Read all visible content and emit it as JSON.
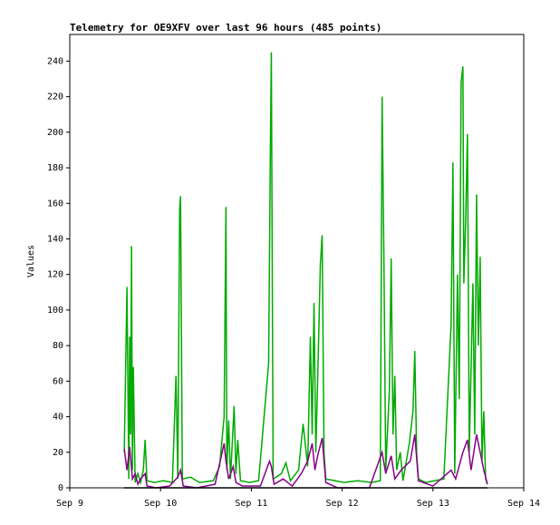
{
  "chart_data": {
    "type": "line",
    "title": "Telemetry for OE9XFV over last 96 hours (485 points)",
    "y_label": "Values",
    "xlim": [
      9,
      14
    ],
    "xticks": [
      {
        "value": 9,
        "label": "Sep 9"
      },
      {
        "value": 10,
        "label": "Sep 10"
      },
      {
        "value": 11,
        "label": "Sep 11"
      },
      {
        "value": 12,
        "label": "Sep 12"
      },
      {
        "value": 13,
        "label": "Sep 13"
      },
      {
        "value": 14,
        "label": "Sep 14"
      }
    ],
    "ylim": [
      0,
      255
    ],
    "yticks": [
      0,
      20,
      40,
      60,
      80,
      100,
      120,
      140,
      160,
      180,
      200,
      220,
      240
    ],
    "series": [
      {
        "color": "#00aa00",
        "x": [
          9.6,
          9.63,
          9.65,
          9.66,
          9.67,
          9.68,
          9.69,
          9.7,
          9.72,
          9.75,
          9.78,
          9.81,
          9.83,
          9.85,
          9.93,
          10.03,
          10.13,
          10.17,
          10.19,
          10.21,
          10.22,
          10.24,
          10.33,
          10.43,
          10.58,
          10.65,
          10.7,
          10.72,
          10.73,
          10.75,
          10.77,
          10.81,
          10.83,
          10.85,
          10.88,
          10.98,
          11.08,
          11.19,
          11.21,
          11.22,
          11.24,
          11.33,
          11.38,
          11.43,
          11.52,
          11.57,
          11.62,
          11.65,
          11.67,
          11.69,
          11.71,
          11.73,
          11.76,
          11.78,
          11.8,
          11.82,
          11.92,
          12.02,
          12.17,
          12.32,
          12.42,
          12.44,
          12.46,
          12.48,
          12.52,
          12.54,
          12.56,
          12.58,
          12.6,
          12.64,
          12.67,
          12.74,
          12.78,
          12.8,
          12.82,
          12.84,
          12.92,
          13.02,
          13.12,
          13.2,
          13.22,
          13.24,
          13.27,
          13.29,
          13.31,
          13.33,
          13.34,
          13.36,
          13.38,
          13.4,
          13.44,
          13.46,
          13.48,
          13.5,
          13.52,
          13.54,
          13.56,
          13.58,
          13.6
        ],
        "values": [
          20,
          113,
          5,
          85,
          30,
          136,
          10,
          68,
          3,
          8,
          3,
          10,
          27,
          4,
          3,
          4,
          3,
          63,
          5,
          157,
          164,
          5,
          6,
          3,
          4,
          12,
          40,
          158,
          10,
          38,
          5,
          46,
          8,
          27,
          4,
          3,
          4,
          70,
          194,
          245,
          5,
          8,
          14,
          4,
          10,
          36,
          12,
          85,
          30,
          104,
          20,
          60,
          126,
          142,
          20,
          5,
          4,
          3,
          4,
          3,
          4,
          220,
          128,
          10,
          55,
          129,
          30,
          63,
          10,
          20,
          4,
          25,
          43,
          77,
          20,
          5,
          3,
          4,
          5,
          92,
          183,
          8,
          120,
          50,
          228,
          237,
          115,
          150,
          199,
          20,
          115,
          30,
          165,
          80,
          130,
          15,
          43,
          5,
          2
        ]
      },
      {
        "color": "#880088",
        "x": [
          9.6,
          9.63,
          9.66,
          9.69,
          9.72,
          9.75,
          9.78,
          9.83,
          9.85,
          9.95,
          10.1,
          10.19,
          10.22,
          10.25,
          10.4,
          10.6,
          10.7,
          10.72,
          10.75,
          10.8,
          10.83,
          10.9,
          11.1,
          11.2,
          11.22,
          11.25,
          11.35,
          11.45,
          11.55,
          11.62,
          11.67,
          11.7,
          11.73,
          11.78,
          11.82,
          11.95,
          12.3,
          12.44,
          12.48,
          12.54,
          12.58,
          12.65,
          12.75,
          12.8,
          12.84,
          13.0,
          13.2,
          13.25,
          13.33,
          13.38,
          13.42,
          13.48,
          13.52,
          13.56,
          13.6
        ],
        "values": [
          22,
          10,
          23,
          5,
          8,
          2,
          5,
          8,
          1,
          0,
          1,
          6,
          10,
          1,
          0,
          2,
          25,
          15,
          5,
          12,
          3,
          1,
          1,
          15,
          12,
          2,
          5,
          1,
          8,
          15,
          25,
          10,
          18,
          28,
          3,
          0,
          0,
          20,
          8,
          18,
          5,
          10,
          15,
          30,
          4,
          1,
          10,
          5,
          20,
          27,
          10,
          30,
          20,
          10,
          2
        ]
      },
      {
        "color": "#000000",
        "x": [
          9.6,
          13.6
        ],
        "values": [
          0,
          0
        ]
      }
    ]
  }
}
